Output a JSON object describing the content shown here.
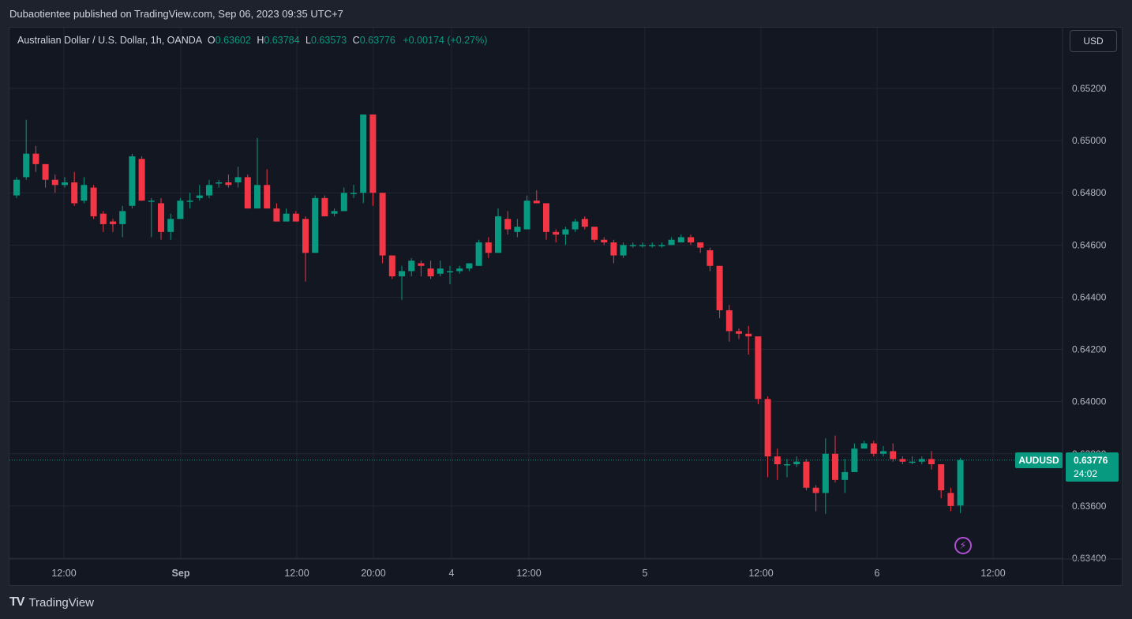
{
  "header": {
    "publisher": "Dubaotientee published on TradingView.com, Sep 06, 2023 09:35 UTC+7"
  },
  "legend": {
    "title": "Australian Dollar / U.S. Dollar, 1h, OANDA",
    "o_label": "O",
    "o": "0.63602",
    "h_label": "H",
    "h": "0.63784",
    "l_label": "L",
    "l": "0.63573",
    "c_label": "C",
    "c": "0.63776",
    "change": "+0.00174 (+0.27%)"
  },
  "currency_button": "USD",
  "last_price": {
    "symbol": "AUDUSD",
    "price": "0.63776",
    "countdown": "24:02"
  },
  "footer": {
    "brand": "TradingView",
    "logo_icon": "tradingview-logo-icon"
  },
  "colors": {
    "up": "#089981",
    "down": "#f23645",
    "background": "#131722",
    "grid": "#232632",
    "text": "#b2b5be"
  },
  "chart_data": {
    "type": "candlestick",
    "symbol": "AUDUSD",
    "interval": "1h",
    "ylim": [
      0.6334,
      0.6538
    ],
    "y_ticks": [
      "0.65200",
      "0.65000",
      "0.64800",
      "0.64600",
      "0.64400",
      "0.64200",
      "0.64000",
      "0.63800",
      "0.63600",
      "0.63400"
    ],
    "x_ticks": [
      "12:00",
      "Sep",
      "12:00",
      "20:00",
      "4",
      "12:00",
      "5",
      "12:00",
      "6",
      "12:00"
    ],
    "grid": true,
    "last_value": 0.63776,
    "candles": [
      [
        0.6479,
        0.6486,
        0.6478,
        0.6485
      ],
      [
        0.6486,
        0.6508,
        0.6485,
        0.6495
      ],
      [
        0.6495,
        0.6498,
        0.6488,
        0.6491
      ],
      [
        0.6491,
        0.6491,
        0.6482,
        0.6485
      ],
      [
        0.6485,
        0.6487,
        0.648,
        0.6483
      ],
      [
        0.6483,
        0.6486,
        0.6482,
        0.6484
      ],
      [
        0.6484,
        0.6488,
        0.6475,
        0.6476
      ],
      [
        0.6477,
        0.6486,
        0.6476,
        0.6483
      ],
      [
        0.6482,
        0.6483,
        0.647,
        0.6471
      ],
      [
        0.6472,
        0.6473,
        0.6465,
        0.6468
      ],
      [
        0.6469,
        0.647,
        0.6465,
        0.6468
      ],
      [
        0.6468,
        0.6475,
        0.6463,
        0.6473
      ],
      [
        0.6475,
        0.6495,
        0.6474,
        0.6494
      ],
      [
        0.6493,
        0.6494,
        0.6477,
        0.6477
      ],
      [
        0.6477,
        0.6478,
        0.6463,
        0.6477
      ],
      [
        0.6476,
        0.6478,
        0.6462,
        0.6465
      ],
      [
        0.6465,
        0.6472,
        0.6462,
        0.647
      ],
      [
        0.647,
        0.6478,
        0.647,
        0.6477
      ],
      [
        0.6477,
        0.648,
        0.6474,
        0.6477
      ],
      [
        0.6478,
        0.6483,
        0.6477,
        0.6479
      ],
      [
        0.6479,
        0.6485,
        0.6478,
        0.6483
      ],
      [
        0.6484,
        0.6485,
        0.6482,
        0.6484
      ],
      [
        0.6484,
        0.6487,
        0.6482,
        0.6483
      ],
      [
        0.6484,
        0.649,
        0.6482,
        0.6486
      ],
      [
        0.6486,
        0.6487,
        0.6474,
        0.6474
      ],
      [
        0.6474,
        0.6501,
        0.6474,
        0.6483
      ],
      [
        0.6483,
        0.6489,
        0.6474,
        0.6474
      ],
      [
        0.6474,
        0.6476,
        0.6469,
        0.6469
      ],
      [
        0.6469,
        0.6474,
        0.6469,
        0.6472
      ],
      [
        0.6472,
        0.6473,
        0.6469,
        0.6469
      ],
      [
        0.647,
        0.6471,
        0.6446,
        0.6457
      ],
      [
        0.6457,
        0.6479,
        0.6457,
        0.6478
      ],
      [
        0.6478,
        0.6479,
        0.6471,
        0.6471
      ],
      [
        0.6472,
        0.6474,
        0.6471,
        0.6473
      ],
      [
        0.6473,
        0.6482,
        0.6473,
        0.648
      ],
      [
        0.648,
        0.6483,
        0.6478,
        0.648
      ],
      [
        0.648,
        0.651,
        0.6476,
        0.651
      ],
      [
        0.651,
        0.651,
        0.6475,
        0.648
      ],
      [
        0.648,
        0.648,
        0.6453,
        0.6456
      ],
      [
        0.6456,
        0.6456,
        0.6447,
        0.6448
      ],
      [
        0.6448,
        0.6452,
        0.6439,
        0.645
      ],
      [
        0.645,
        0.6455,
        0.6448,
        0.6454
      ],
      [
        0.6453,
        0.6454,
        0.6448,
        0.6452
      ],
      [
        0.6451,
        0.6454,
        0.6447,
        0.6448
      ],
      [
        0.6449,
        0.6454,
        0.6448,
        0.6451
      ],
      [
        0.645,
        0.6452,
        0.6445,
        0.645
      ],
      [
        0.645,
        0.6452,
        0.6449,
        0.6451
      ],
      [
        0.6451,
        0.6453,
        0.645,
        0.6453
      ],
      [
        0.6452,
        0.6462,
        0.6452,
        0.6461
      ],
      [
        0.6461,
        0.6463,
        0.6455,
        0.6457
      ],
      [
        0.6457,
        0.6474,
        0.6457,
        0.6471
      ],
      [
        0.647,
        0.6473,
        0.6464,
        0.6466
      ],
      [
        0.6465,
        0.647,
        0.6463,
        0.6467
      ],
      [
        0.6466,
        0.6479,
        0.6466,
        0.6477
      ],
      [
        0.6477,
        0.6481,
        0.6476,
        0.6476
      ],
      [
        0.6476,
        0.6476,
        0.6462,
        0.6465
      ],
      [
        0.6465,
        0.6466,
        0.6461,
        0.6464
      ],
      [
        0.6464,
        0.6467,
        0.646,
        0.6466
      ],
      [
        0.6466,
        0.647,
        0.6465,
        0.6469
      ],
      [
        0.647,
        0.6471,
        0.6466,
        0.6467
      ],
      [
        0.6467,
        0.6467,
        0.6461,
        0.6462
      ],
      [
        0.6462,
        0.6463,
        0.646,
        0.6461
      ],
      [
        0.6461,
        0.6462,
        0.6453,
        0.6456
      ],
      [
        0.6456,
        0.6461,
        0.6455,
        0.646
      ],
      [
        0.646,
        0.6461,
        0.6459,
        0.646
      ],
      [
        0.646,
        0.6461,
        0.6459,
        0.646
      ],
      [
        0.646,
        0.6461,
        0.6459,
        0.646
      ],
      [
        0.646,
        0.6461,
        0.6459,
        0.646
      ],
      [
        0.646,
        0.6463,
        0.646,
        0.6462
      ],
      [
        0.6461,
        0.6464,
        0.6461,
        0.6463
      ],
      [
        0.6463,
        0.6464,
        0.646,
        0.6461
      ],
      [
        0.6461,
        0.6461,
        0.6457,
        0.6459
      ],
      [
        0.6458,
        0.6459,
        0.645,
        0.6452
      ],
      [
        0.6452,
        0.6452,
        0.6432,
        0.6435
      ],
      [
        0.6435,
        0.6437,
        0.6423,
        0.6427
      ],
      [
        0.6427,
        0.6428,
        0.6424,
        0.6426
      ],
      [
        0.6426,
        0.6429,
        0.6418,
        0.6425
      ],
      [
        0.6425,
        0.6425,
        0.6399,
        0.6401
      ],
      [
        0.6401,
        0.6402,
        0.6371,
        0.6379
      ],
      [
        0.6379,
        0.6382,
        0.637,
        0.6376
      ],
      [
        0.6376,
        0.6378,
        0.6371,
        0.6376
      ],
      [
        0.6376,
        0.6379,
        0.6375,
        0.6377
      ],
      [
        0.6377,
        0.6378,
        0.6366,
        0.6367
      ],
      [
        0.6367,
        0.6368,
        0.6358,
        0.6365
      ],
      [
        0.6365,
        0.6386,
        0.6357,
        0.638
      ],
      [
        0.638,
        0.6387,
        0.6369,
        0.637
      ],
      [
        0.637,
        0.6378,
        0.6365,
        0.6373
      ],
      [
        0.6373,
        0.6384,
        0.6373,
        0.6382
      ],
      [
        0.6382,
        0.6385,
        0.6382,
        0.6384
      ],
      [
        0.6384,
        0.6385,
        0.6379,
        0.638
      ],
      [
        0.638,
        0.6383,
        0.6379,
        0.6381
      ],
      [
        0.6381,
        0.6384,
        0.6377,
        0.6378
      ],
      [
        0.6378,
        0.6379,
        0.6376,
        0.6377
      ],
      [
        0.6377,
        0.6379,
        0.6376,
        0.6377
      ],
      [
        0.6377,
        0.6379,
        0.6376,
        0.6378
      ],
      [
        0.6378,
        0.6381,
        0.6374,
        0.6376
      ],
      [
        0.6376,
        0.6376,
        0.6363,
        0.6366
      ],
      [
        0.6365,
        0.6367,
        0.6358,
        0.636
      ],
      [
        0.63602,
        0.63784,
        0.63573,
        0.63776
      ]
    ]
  }
}
